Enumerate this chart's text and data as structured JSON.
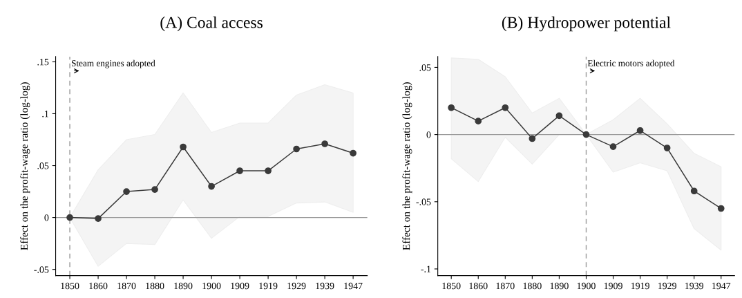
{
  "chart_data": [
    {
      "type": "line",
      "title": "(A) Coal access",
      "ylabel": "Effect on the profit-wage ratio (log-log)",
      "categories": [
        "1850",
        "1860",
        "1870",
        "1880",
        "1890",
        "1900",
        "1909",
        "1919",
        "1929",
        "1939",
        "1947"
      ],
      "series": [
        {
          "color": "#3a3a3a",
          "values": [
            0,
            -0.001,
            0.025,
            0.027,
            0.068,
            0.03,
            0.045,
            0.045,
            0.066,
            0.071,
            0.062
          ],
          "lower": [
            0,
            -0.047,
            -0.025,
            -0.026,
            0.017,
            -0.02,
            0.001,
            0.001,
            0.014,
            0.015,
            0.005
          ],
          "upper": [
            0,
            0.046,
            0.075,
            0.08,
            0.12,
            0.082,
            0.091,
            0.091,
            0.118,
            0.128,
            0.12
          ]
        }
      ],
      "ylim": [
        -0.056,
        0.155
      ],
      "yticks": [
        {
          "value": -0.05,
          "label": "-.05"
        },
        0,
        {
          "value": 0.05,
          "label": ".05"
        },
        {
          "value": 0.1,
          "label": ".1"
        },
        {
          "value": 0.15,
          "label": ".15"
        }
      ],
      "ref_lines": [
        {
          "axis": "y",
          "value": 0,
          "color": "#999999",
          "line_style": "solid"
        },
        {
          "axis": "x",
          "value": "1850",
          "label": "Steam engines adopted",
          "color": "#999999",
          "line_style": "dashed"
        }
      ],
      "marker": "circle",
      "line_style": "solid",
      "grid": false,
      "legend": false
    },
    {
      "type": "line",
      "title": "(B) Hydropower potential",
      "ylabel": "Effect on the profit-wage ratio (log-log)",
      "categories": [
        "1850",
        "1860",
        "1870",
        "1880",
        "1890",
        "1900",
        "1909",
        "1919",
        "1929",
        "1939",
        "1947"
      ],
      "series": [
        {
          "color": "#3a3a3a",
          "values": [
            0.02,
            0.01,
            0.02,
            -0.003,
            0.014,
            0,
            -0.009,
            0.003,
            -0.01,
            -0.042,
            -0.055
          ],
          "lower": [
            -0.018,
            -0.035,
            -0.002,
            -0.022,
            0,
            0,
            -0.028,
            -0.021,
            -0.027,
            -0.07,
            -0.086
          ],
          "upper": [
            0.057,
            0.056,
            0.043,
            0.016,
            0.027,
            0,
            0.011,
            0.027,
            0.008,
            -0.014,
            -0.024
          ]
        }
      ],
      "ylim": [
        -0.105,
        0.058
      ],
      "yticks": [
        {
          "value": -0.1,
          "label": "-.1"
        },
        {
          "value": -0.05,
          "label": "-.05"
        },
        0,
        {
          "value": 0.05,
          "label": ".05"
        }
      ],
      "ref_lines": [
        {
          "axis": "y",
          "value": 0,
          "color": "#999999",
          "line_style": "solid"
        },
        {
          "axis": "x",
          "value": "1900",
          "label": "Electric motors adopted",
          "color": "#999999",
          "line_style": "dashed"
        }
      ],
      "marker": "circle",
      "line_style": "solid",
      "grid": false,
      "legend": false
    }
  ]
}
